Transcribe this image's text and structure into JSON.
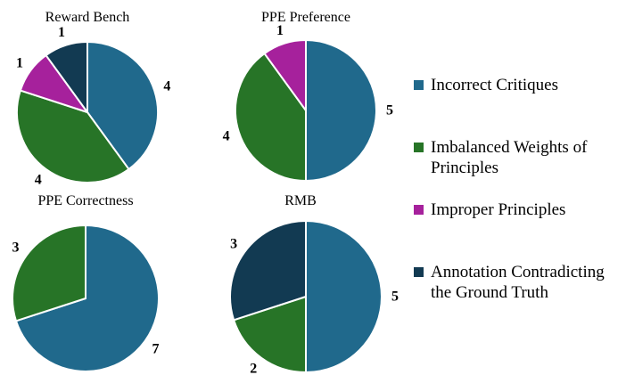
{
  "chart_data": {
    "type": "pie",
    "start_angle_deg": 0,
    "direction": "clockwise",
    "charts": [
      {
        "title": "Reward Bench",
        "categories": [
          "Incorrect Critiques",
          "Imbalanced Weights of Principles",
          "Improper Principles",
          "Annotation Contradicting the Ground Truth"
        ],
        "values": [
          4,
          4,
          1,
          1
        ],
        "colors": [
          "#20698C",
          "#277427",
          "#A6219C",
          "#123A52"
        ]
      },
      {
        "title": "PPE Preference",
        "categories": [
          "Incorrect Critiques",
          "Imbalanced Weights of Principles",
          "Improper Principles"
        ],
        "values": [
          5,
          4,
          1
        ],
        "colors": [
          "#20698C",
          "#277427",
          "#A6219C"
        ]
      },
      {
        "title": "PPE Correctness",
        "categories": [
          "Incorrect Critiques",
          "Imbalanced Weights of Principles"
        ],
        "values": [
          7,
          3
        ],
        "colors": [
          "#20698C",
          "#277427"
        ]
      },
      {
        "title": "RMB",
        "categories": [
          "Incorrect Critiques",
          "Imbalanced Weights of Principles",
          "Annotation Contradicting the Ground Truth"
        ],
        "values": [
          5,
          2,
          3
        ],
        "colors": [
          "#20698C",
          "#277427",
          "#123A52"
        ]
      }
    ],
    "legend": {
      "position": "right",
      "entries": [
        {
          "label": "Incorrect Critiques",
          "color": "#20698C"
        },
        {
          "label": "Imbalanced Weights of Principles",
          "color": "#277427"
        },
        {
          "label": "Improper Principles",
          "color": "#A6219C"
        },
        {
          "label": "Annotation Contradicting the Ground Truth",
          "color": "#123A52"
        }
      ]
    }
  }
}
